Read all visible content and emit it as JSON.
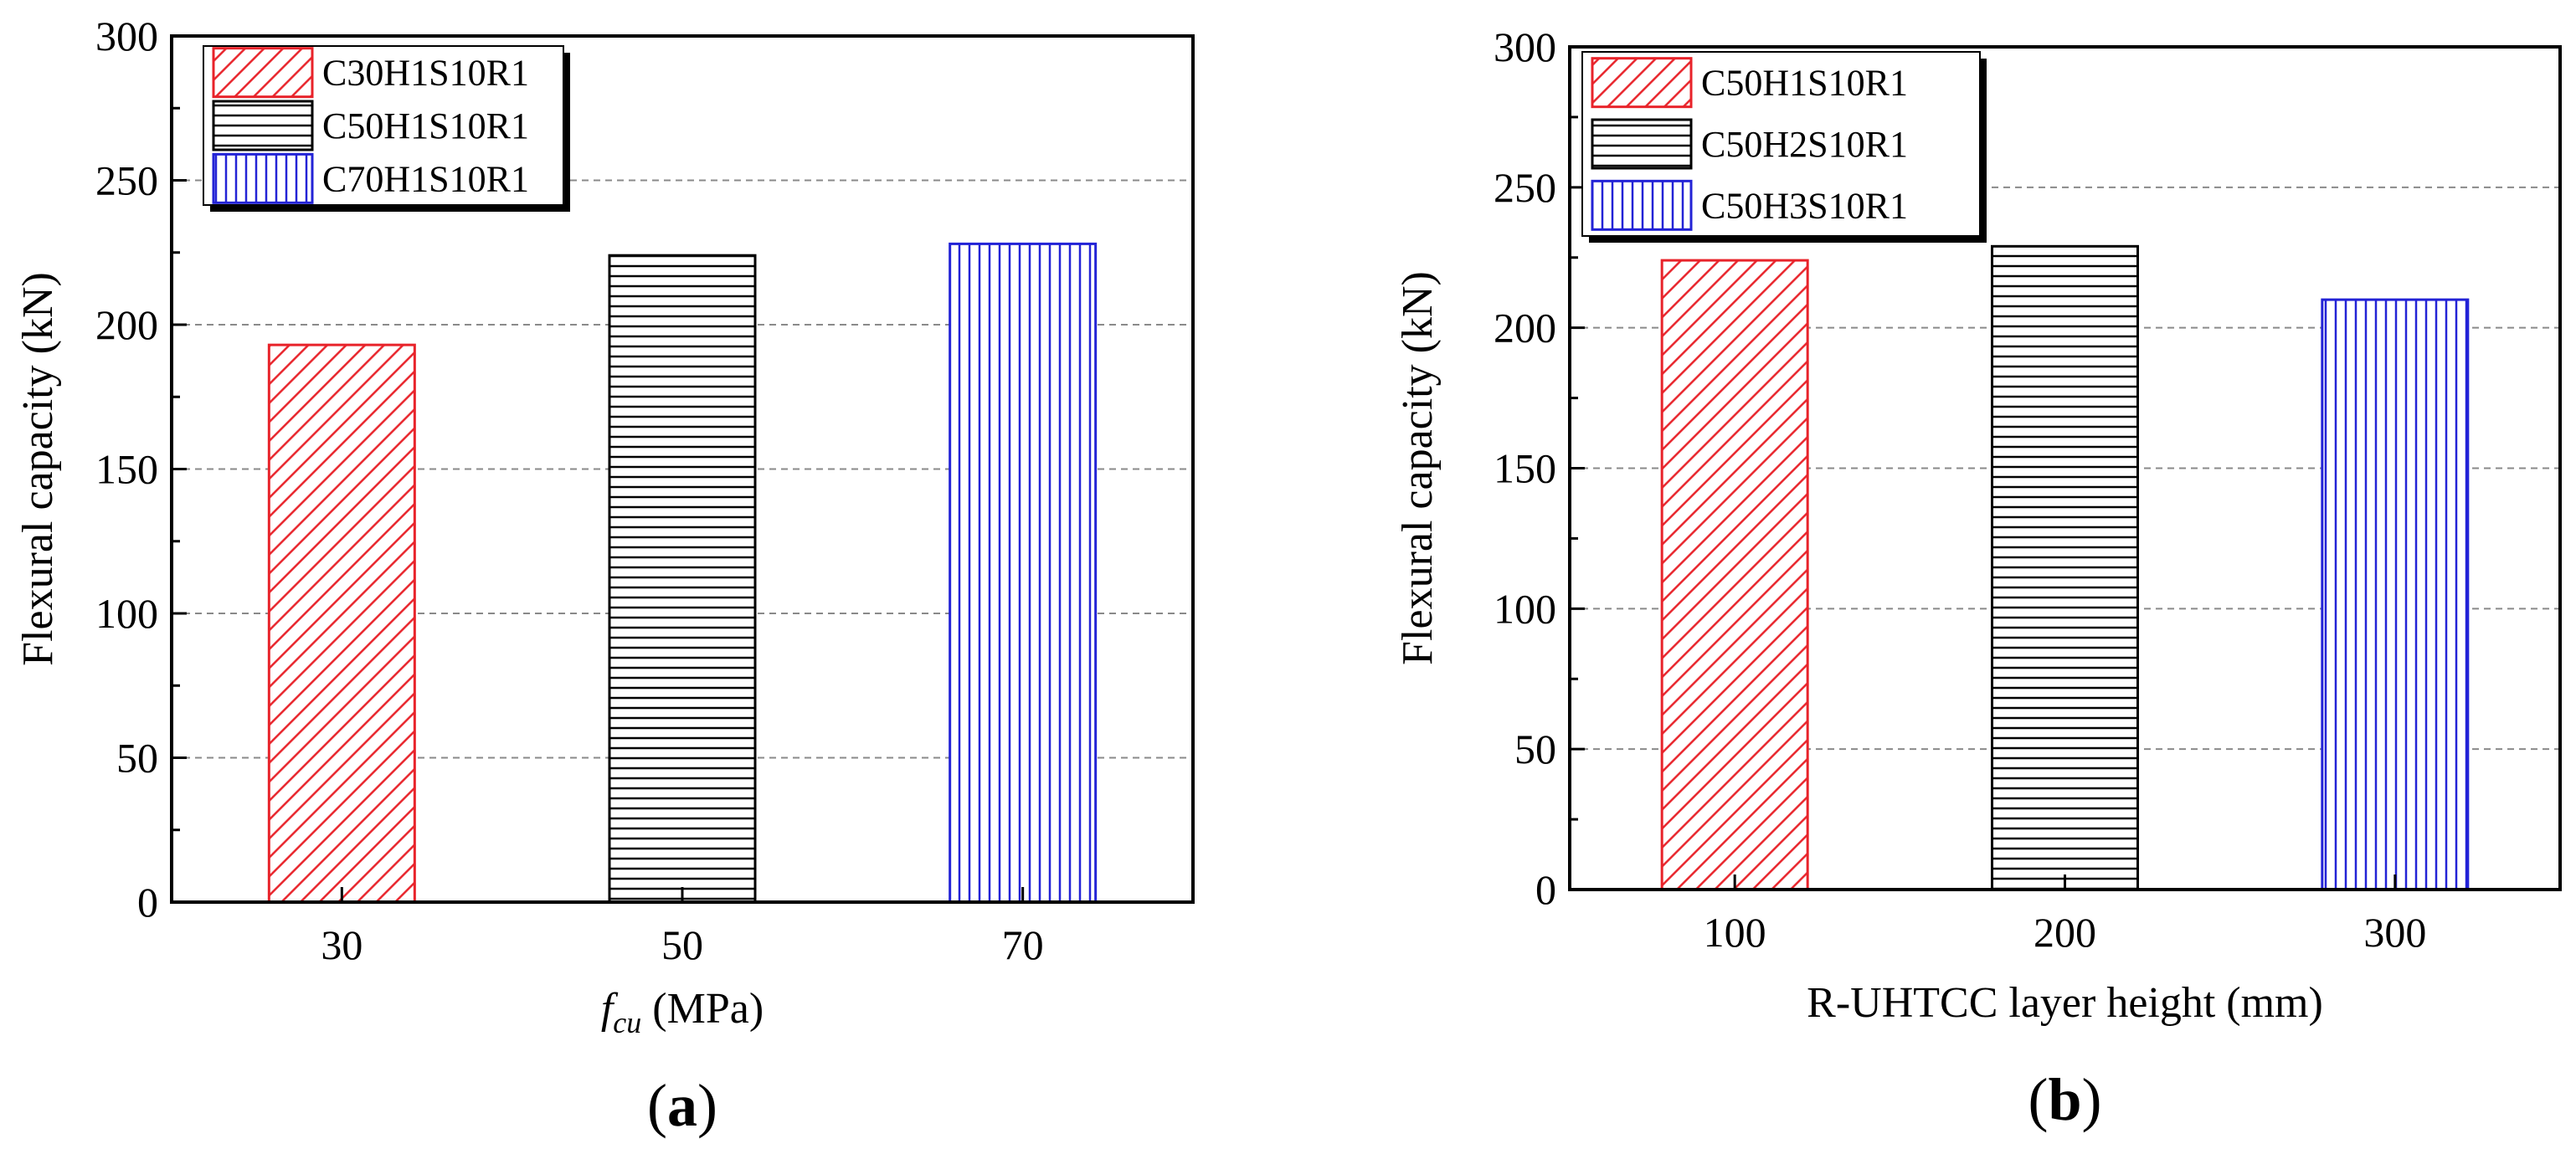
{
  "figure": {
    "panel_prefix": "(",
    "panel_suffix": ")"
  },
  "panels": [
    {
      "panel_label": "a",
      "xlabel_italic": "f",
      "xlabel_sub": "cu",
      "xlabel_rest": " (MPa)"
    },
    {
      "panel_label": "b",
      "xlabel_italic": "",
      "xlabel_sub": "",
      "xlabel_rest": "R-UHTCC layer height (mm)"
    }
  ],
  "series_styles": [
    {
      "color": "#e8232a",
      "pattern": "diagonal"
    },
    {
      "color": "#000000",
      "pattern": "horizontal"
    },
    {
      "color": "#2323d6",
      "pattern": "vertical"
    }
  ],
  "chart_data": [
    {
      "type": "bar",
      "title": "",
      "xlabel": "fcu (MPa)",
      "ylabel": "Flexural capacity (kN)",
      "categories": [
        "30",
        "50",
        "70"
      ],
      "values": [
        193,
        224,
        228
      ],
      "legend": [
        "C30H1S10R1",
        "C50H1S10R1",
        "C70H1S10R1"
      ],
      "legend_position": "top-left",
      "ylim": [
        0,
        300
      ],
      "yticks": [
        "0",
        "50",
        "100",
        "150",
        "200",
        "250",
        "300"
      ],
      "grid": "horizontal dashed"
    },
    {
      "type": "bar",
      "title": "",
      "xlabel": "R-UHTCC layer height (mm)",
      "ylabel": "Flexural capacity (kN)",
      "categories": [
        "100",
        "200",
        "300"
      ],
      "values": [
        224,
        229,
        210
      ],
      "legend": [
        "C50H1S10R1",
        "C50H2S10R1",
        "C50H3S10R1"
      ],
      "legend_position": "top-left",
      "ylim": [
        0,
        300
      ],
      "yticks": [
        "0",
        "50",
        "100",
        "150",
        "200",
        "250",
        "300"
      ],
      "grid": "horizontal dashed"
    }
  ]
}
